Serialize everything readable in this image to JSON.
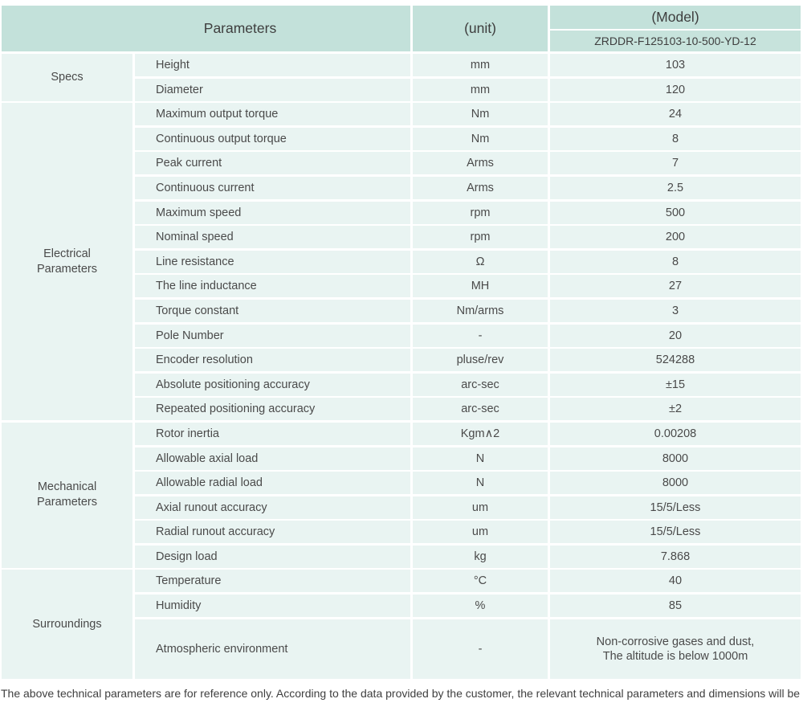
{
  "header": {
    "parameters_label": "Parameters",
    "unit_label": "(unit)",
    "model_label": "(Model)",
    "model_value": "ZRDDR-F125103-10-500-YD-12"
  },
  "colors": {
    "header_bg": "#c3e1da",
    "row_bg": "#e9f4f2",
    "text": "#4a4a4a"
  },
  "sections": [
    {
      "name": "Specs",
      "rows": [
        {
          "param": "Height",
          "unit": "mm",
          "value": "103"
        },
        {
          "param": "Diameter",
          "unit": "mm",
          "value": "120"
        }
      ]
    },
    {
      "name": "Electrical Parameters",
      "rows": [
        {
          "param": "Maximum output torque",
          "unit": "Nm",
          "value": "24"
        },
        {
          "param": "Continuous output torque",
          "unit": "Nm",
          "value": "8"
        },
        {
          "param": "Peak current",
          "unit": "Arms",
          "value": "7"
        },
        {
          "param": "Continuous current",
          "unit": "Arms",
          "value": "2.5"
        },
        {
          "param": "Maximum speed",
          "unit": "rpm",
          "value": "500"
        },
        {
          "param": "Nominal speed",
          "unit": "rpm",
          "value": "200"
        },
        {
          "param": "Line resistance",
          "unit": "Ω",
          "value": "8"
        },
        {
          "param": "The line inductance",
          "unit": "MH",
          "value": "27"
        },
        {
          "param": "Torque constant",
          "unit": "Nm/arms",
          "value": "3"
        },
        {
          "param": "Pole Number",
          "unit": "-",
          "value": "20"
        },
        {
          "param": "Encoder resolution",
          "unit": "pluse/rev",
          "value": "524288"
        },
        {
          "param": "Absolute positioning accuracy",
          "unit": "arc-sec",
          "value": "±15"
        },
        {
          "param": "Repeated positioning accuracy",
          "unit": "arc-sec",
          "value": "±2"
        }
      ]
    },
    {
      "name": "Mechanical Parameters",
      "rows": [
        {
          "param": "Rotor inertia",
          "unit": "Kgm∧2",
          "value": "0.00208"
        },
        {
          "param": "Allowable axial load",
          "unit": "N",
          "value": "8000"
        },
        {
          "param": "Allowable radial load",
          "unit": "N",
          "value": "8000"
        },
        {
          "param": "Axial runout accuracy",
          "unit": "um",
          "value": "15/5/Less"
        },
        {
          "param": "Radial runout accuracy",
          "unit": "um",
          "value": "15/5/Less"
        },
        {
          "param": "Design load",
          "unit": "kg",
          "value": "7.868"
        }
      ]
    },
    {
      "name": "Surroundings",
      "rows": [
        {
          "param": "Temperature",
          "unit": "°C",
          "value": "40"
        },
        {
          "param": "Humidity",
          "unit": "%",
          "value": "85"
        },
        {
          "param": "Atmospheric environment",
          "unit": "-",
          "value": "Non-corrosive gases and dust,\nThe altitude is below 1000m",
          "tall": true
        }
      ]
    }
  ],
  "footer": {
    "note": "The above technical parameters are for reference only. According to the data provided by the customer, the relevant technical parameters and dimensions will be issued."
  }
}
